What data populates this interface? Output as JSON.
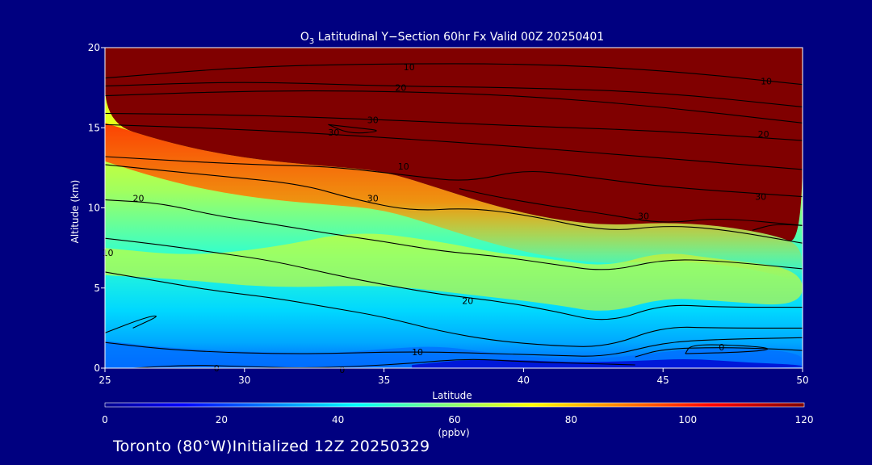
{
  "chart_data": {
    "type": "heatmap",
    "title_main": "O",
    "title_sub": "3",
    "title_rest": " Latitudinal Y−Section 60hr  Fx Valid 00Z 20250401",
    "xlabel": "Latitude",
    "ylabel": "Altitude (km)",
    "xlim": [
      25,
      50
    ],
    "ylim": [
      0,
      20
    ],
    "x_ticks": [
      "25",
      "30",
      "35",
      "40",
      "45",
      "50"
    ],
    "y_ticks": [
      "0",
      "5",
      "10",
      "15",
      "20"
    ],
    "colorbar": {
      "range": [
        0,
        120
      ],
      "ticks": [
        "0",
        "20",
        "40",
        "60",
        "80",
        "100",
        "120"
      ],
      "unit": "(ppbv)"
    },
    "field_summary": {
      "tropopause_altitude_km": [
        {
          "lat": 25,
          "z": 15.3
        },
        {
          "lat": 27,
          "z": 14.2
        },
        {
          "lat": 29,
          "z": 13.4
        },
        {
          "lat": 31,
          "z": 12.9
        },
        {
          "lat": 33,
          "z": 12.6
        },
        {
          "lat": 35,
          "z": 12.3
        },
        {
          "lat": 37,
          "z": 11.2
        },
        {
          "lat": 39,
          "z": 10.1
        },
        {
          "lat": 41,
          "z": 9.3
        },
        {
          "lat": 43,
          "z": 8.9
        },
        {
          "lat": 45,
          "z": 9.1
        },
        {
          "lat": 47,
          "z": 8.9
        },
        {
          "lat": 49,
          "z": 8.3
        },
        {
          "lat": 50,
          "z": 7.6
        }
      ],
      "boundary_layer_min_ppbv": 5,
      "stratosphere_ppbv": 120
    },
    "contour_labels": [
      {
        "text": "10",
        "lat": 35.9,
        "z": 18.8
      },
      {
        "text": "20",
        "lat": 35.6,
        "z": 17.5
      },
      {
        "text": "30",
        "lat": 34.6,
        "z": 15.5
      },
      {
        "text": "30",
        "lat": 33.2,
        "z": 14.7
      },
      {
        "text": "10",
        "lat": 48.7,
        "z": 17.9
      },
      {
        "text": "20",
        "lat": 48.6,
        "z": 14.6
      },
      {
        "text": "30",
        "lat": 48.5,
        "z": 10.7
      },
      {
        "text": "30",
        "lat": 44.3,
        "z": 9.5
      },
      {
        "text": "10",
        "lat": 35.7,
        "z": 12.6
      },
      {
        "text": "30",
        "lat": 34.6,
        "z": 10.6
      },
      {
        "text": "20",
        "lat": 26.2,
        "z": 10.6
      },
      {
        "text": "10",
        "lat": 25.1,
        "z": 7.2
      },
      {
        "text": "20",
        "lat": 38.0,
        "z": 4.2
      },
      {
        "text": "10",
        "lat": 36.2,
        "z": 1.0
      },
      {
        "text": "0",
        "lat": 47.1,
        "z": 1.3
      },
      {
        "text": "0",
        "lat": 29.0,
        "z": 0.0
      },
      {
        "text": "0",
        "lat": 33.5,
        "z": -0.1
      }
    ]
  },
  "footer": "Toronto (80°W)Initialized 12Z 20250329"
}
